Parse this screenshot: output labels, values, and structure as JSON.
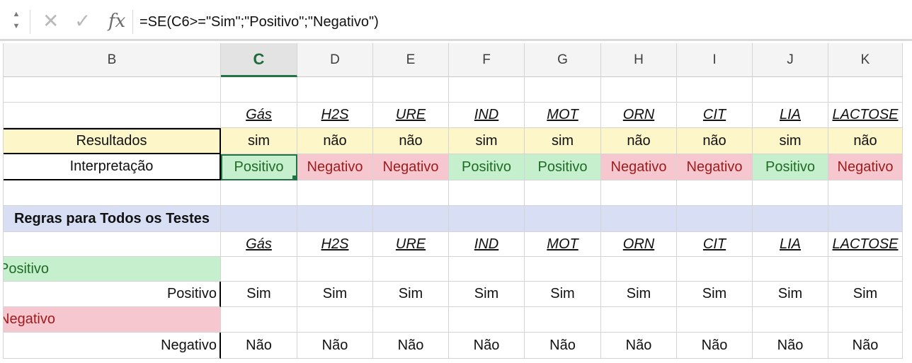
{
  "formula_bar": {
    "stepper_up": "▲",
    "stepper_down": "▼",
    "cancel_icon": "✕",
    "confirm_icon": "✓",
    "fx_label": "fx",
    "formula": "=SE(C6>=\"Sim\";\"Positivo\";\"Negativo\")"
  },
  "columns": [
    "B",
    "C",
    "D",
    "E",
    "F",
    "G",
    "H",
    "I",
    "J",
    "K"
  ],
  "active_column": "C",
  "tests": [
    "Gás",
    "H2S",
    "URE",
    "IND",
    "MOT",
    "ORN",
    "CIT",
    "LIA",
    "LACTOSE"
  ],
  "results_label": "Resultados",
  "results": [
    "sim",
    "não",
    "não",
    "sim",
    "sim",
    "não",
    "não",
    "sim",
    "não"
  ],
  "interpretation_label": "Interpretação",
  "interpretation": [
    "Positivo",
    "Negativo",
    "Negativo",
    "Positivo",
    "Positivo",
    "Negativo",
    "Negativo",
    "Positivo",
    "Negativo"
  ],
  "rules_title": "Regras para Todos os Testes",
  "rules_tests": [
    "Gás",
    "H2S",
    "URE",
    "IND",
    "MOT",
    "ORN",
    "CIT",
    "LIA",
    "LACTOSE"
  ],
  "positive_banner": "Positivo",
  "positive_label": "Positivo",
  "positive_values": [
    "Sim",
    "Sim",
    "Sim",
    "Sim",
    "Sim",
    "Sim",
    "Sim",
    "Sim",
    "Sim"
  ],
  "negative_banner": "Negativo",
  "negative_label": "Negativo",
  "negative_values": [
    "Não",
    "Não",
    "Não",
    "Não",
    "Não",
    "Não",
    "Não",
    "Não",
    "Não"
  ],
  "colors": {
    "positive_fill": "#c6efce",
    "positive_text": "#1f6b26",
    "negative_fill": "#f6c7ce",
    "negative_text": "#9c1c1c",
    "results_fill": "#fdf6c9",
    "rules_fill": "#d8dff4",
    "selection": "#217346"
  }
}
